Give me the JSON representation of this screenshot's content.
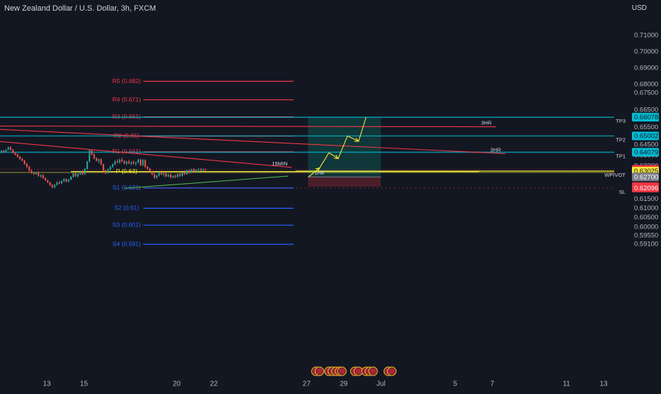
{
  "header": {
    "title": "New Zealand Dollar / U.S. Dollar, 3h, FXCM",
    "currency": "USD"
  },
  "colors": {
    "background": "#131722",
    "bull": "#26a69a",
    "bear": "#ef5350",
    "resistance": "#f23645",
    "support": "#2962ff",
    "pivot": "#f5e63b",
    "target": "#089981",
    "grid": "#2a2e39"
  },
  "chart_data": {
    "type": "candlestick",
    "symbol": "NZDUSD",
    "timeframe": "3h",
    "yscale": "log",
    "ylim": [
      0.5885,
      0.7165
    ],
    "x_ticks": [
      {
        "label": "13",
        "day": 13
      },
      {
        "label": "15",
        "day": 15
      },
      {
        "label": "20",
        "day": 20
      },
      {
        "label": "22",
        "day": 22
      },
      {
        "label": "27",
        "day": 27
      },
      {
        "label": "29",
        "day": 29
      },
      {
        "label": "Jul",
        "day": 31
      },
      {
        "label": "5",
        "day": 35
      },
      {
        "label": "7",
        "day": 37
      },
      {
        "label": "11",
        "day": 41
      },
      {
        "label": "13",
        "day": 43
      }
    ],
    "y_ticks": [
      0.71,
      0.7,
      0.69,
      0.68,
      0.675,
      0.665,
      0.655,
      0.645,
      0.639,
      0.633,
      0.615,
      0.61,
      0.605,
      0.6,
      0.5955,
      0.591
    ],
    "pivot_levels": [
      {
        "label": "R5 (0.682)",
        "value": 0.682,
        "kind": "resistance"
      },
      {
        "label": "R4 (0.671)",
        "value": 0.671,
        "kind": "resistance"
      },
      {
        "label": "R3 (0.661)",
        "value": 0.661,
        "kind": "resistance"
      },
      {
        "label": "R2 (0.65)",
        "value": 0.65,
        "kind": "resistance"
      },
      {
        "label": "R1 (0.641)",
        "value": 0.641,
        "kind": "resistance"
      },
      {
        "label": "P (0.63)",
        "value": 0.63,
        "kind": "pivot"
      },
      {
        "label": "S1 (0.621)",
        "value": 0.621,
        "kind": "support"
      },
      {
        "label": "S2 (0.61)",
        "value": 0.61,
        "kind": "support"
      },
      {
        "label": "S3 (0.601)",
        "value": 0.601,
        "kind": "support"
      },
      {
        "label": "S4 (0.591)",
        "value": 0.591,
        "kind": "support"
      }
    ],
    "price_labels": [
      {
        "value": 0.6609,
        "text": "0.66090",
        "bg": "#089981",
        "fg": "#ffffff"
      },
      {
        "value": 0.66078,
        "text": "0.66078",
        "bg": "#00bcd4",
        "fg": "#131722"
      },
      {
        "value": 0.65002,
        "text": "0.65002",
        "bg": "#00bcd4",
        "fg": "#131722"
      },
      {
        "value": 0.64079,
        "text": "0.64079",
        "bg": "#00bcd4",
        "fg": "#131722"
      },
      {
        "value": 0.63126,
        "text": "0.63126",
        "bg": "#f23645",
        "fg": "#ffffff"
      },
      {
        "value": 0.63025,
        "text": "0.63025",
        "bg": "#f5e63b",
        "fg": "#131722"
      },
      {
        "value": 0.627,
        "text": "0.62700",
        "bg": "#787b86",
        "fg": "#ffffff"
      },
      {
        "value": 0.6217,
        "text": "0.62170",
        "bg": "#f23645",
        "fg": "#ffffff"
      },
      {
        "value": 0.62096,
        "text": "0.62096",
        "bg": "#f23645",
        "fg": "#ffffff"
      }
    ],
    "target_lines": [
      {
        "label": "TP3",
        "value": 0.66078
      },
      {
        "label": "TP2",
        "value": 0.65002
      },
      {
        "label": "TP1",
        "value": 0.64079
      },
      {
        "label": "WPIVOT",
        "value": 0.63025
      },
      {
        "label": "SL",
        "value": 0.62096
      }
    ],
    "trade_box": {
      "entry": 0.627,
      "target": 0.6609,
      "stop": 0.6217,
      "x_start": 27,
      "x_end": 31
    },
    "trendlines": [
      {
        "label": "3HR",
        "x1": 10.0,
        "y1": 0.6557,
        "x2": 37.2,
        "y2": 0.6553,
        "color": "#f23645"
      },
      {
        "label": "3HR",
        "x1": 10.0,
        "y1": 0.654,
        "x2": 37.7,
        "y2": 0.64,
        "color": "#f23645"
      },
      {
        "label": "15MIN",
        "x1": 10.1,
        "y1": 0.6472,
        "x2": 26.2,
        "y2": 0.6323,
        "color": "#f23645"
      },
      {
        "label": "",
        "x1": 17.2,
        "y1": 0.6208,
        "x2": 26.0,
        "y2": 0.6275,
        "color": "#4caf50"
      }
    ],
    "annotations": [
      {
        "text": "1HR",
        "day": 27.5,
        "value": 0.629
      }
    ],
    "projection": {
      "color": "#f5e63b",
      "points": [
        [
          27.1,
          0.627
        ],
        [
          27.7,
          0.632
        ],
        [
          28.2,
          0.6405
        ],
        [
          28.7,
          0.6372
        ],
        [
          29.2,
          0.65
        ],
        [
          29.8,
          0.647
        ],
        [
          30.2,
          0.6607
        ]
      ]
    },
    "candles": {
      "start_day": 10.05,
      "step_day": 0.125,
      "ohlc": [
        [
          0.6457,
          0.6463,
          0.6438,
          0.6445
        ],
        [
          0.6445,
          0.6449,
          0.6428,
          0.6432
        ],
        [
          0.6432,
          0.6436,
          0.6416,
          0.642
        ],
        [
          0.642,
          0.6426,
          0.6406,
          0.641
        ],
        [
          0.641,
          0.642,
          0.6402,
          0.6415
        ],
        [
          0.6415,
          0.6422,
          0.6405,
          0.6408
        ],
        [
          0.6408,
          0.6425,
          0.6406,
          0.6422
        ],
        [
          0.6422,
          0.644,
          0.6418,
          0.6436
        ],
        [
          0.6436,
          0.6442,
          0.6418,
          0.6422
        ],
        [
          0.6422,
          0.6426,
          0.64,
          0.6404
        ],
        [
          0.6404,
          0.641,
          0.639,
          0.6395
        ],
        [
          0.6395,
          0.6402,
          0.6378,
          0.6382
        ],
        [
          0.6382,
          0.6388,
          0.6365,
          0.637
        ],
        [
          0.637,
          0.6378,
          0.6356,
          0.6361
        ],
        [
          0.6361,
          0.6366,
          0.6338,
          0.6342
        ],
        [
          0.6342,
          0.6348,
          0.632,
          0.6326
        ],
        [
          0.6326,
          0.6332,
          0.63,
          0.6305
        ],
        [
          0.6305,
          0.6312,
          0.6288,
          0.6292
        ],
        [
          0.6292,
          0.63,
          0.628,
          0.6286
        ],
        [
          0.6286,
          0.63,
          0.6282,
          0.6296
        ],
        [
          0.6296,
          0.6302,
          0.627,
          0.6276
        ],
        [
          0.6276,
          0.6285,
          0.6266,
          0.628
        ],
        [
          0.628,
          0.6286,
          0.626,
          0.6264
        ],
        [
          0.6264,
          0.6268,
          0.6248,
          0.6252
        ],
        [
          0.6252,
          0.6256,
          0.6236,
          0.624
        ],
        [
          0.624,
          0.6244,
          0.622,
          0.6226
        ],
        [
          0.6226,
          0.6232,
          0.6208,
          0.6214
        ],
        [
          0.6214,
          0.623,
          0.6208,
          0.6226
        ],
        [
          0.6226,
          0.6246,
          0.6222,
          0.624
        ],
        [
          0.624,
          0.6248,
          0.623,
          0.6235
        ],
        [
          0.6235,
          0.6252,
          0.6232,
          0.6248
        ],
        [
          0.6248,
          0.6264,
          0.6242,
          0.6258
        ],
        [
          0.6258,
          0.6262,
          0.624,
          0.6246
        ],
        [
          0.6246,
          0.626,
          0.624,
          0.6255
        ],
        [
          0.6255,
          0.6275,
          0.6252,
          0.627
        ],
        [
          0.627,
          0.6295,
          0.6266,
          0.629
        ],
        [
          0.629,
          0.6296,
          0.627,
          0.6275
        ],
        [
          0.6275,
          0.629,
          0.6266,
          0.6286
        ],
        [
          0.6286,
          0.6305,
          0.628,
          0.63
        ],
        [
          0.63,
          0.6308,
          0.628,
          0.6285
        ],
        [
          0.6285,
          0.632,
          0.6282,
          0.6315
        ],
        [
          0.6315,
          0.636,
          0.631,
          0.6355
        ],
        [
          0.6355,
          0.6425,
          0.635,
          0.6418
        ],
        [
          0.6418,
          0.6422,
          0.639,
          0.6396
        ],
        [
          0.6396,
          0.6402,
          0.6368,
          0.6374
        ],
        [
          0.6374,
          0.638,
          0.6355,
          0.636
        ],
        [
          0.636,
          0.6372,
          0.6345,
          0.6368
        ],
        [
          0.6368,
          0.6374,
          0.6335,
          0.634
        ],
        [
          0.634,
          0.6344,
          0.63,
          0.6306
        ],
        [
          0.6306,
          0.6312,
          0.6285,
          0.6292
        ],
        [
          0.6292,
          0.6318,
          0.6288,
          0.6312
        ],
        [
          0.6312,
          0.6332,
          0.6306,
          0.6326
        ],
        [
          0.6326,
          0.6345,
          0.632,
          0.634
        ],
        [
          0.634,
          0.6362,
          0.6334,
          0.6356
        ],
        [
          0.6356,
          0.6368,
          0.6346,
          0.635
        ],
        [
          0.635,
          0.6372,
          0.6344,
          0.6366
        ],
        [
          0.6366,
          0.6378,
          0.6352,
          0.6358
        ],
        [
          0.6358,
          0.6364,
          0.634,
          0.6345
        ],
        [
          0.6345,
          0.636,
          0.6336,
          0.6354
        ],
        [
          0.6354,
          0.6366,
          0.634,
          0.6346
        ],
        [
          0.6346,
          0.6358,
          0.6334,
          0.6352
        ],
        [
          0.6352,
          0.6362,
          0.6338,
          0.6344
        ],
        [
          0.6344,
          0.6356,
          0.6332,
          0.635
        ],
        [
          0.635,
          0.6372,
          0.6346,
          0.6366
        ],
        [
          0.6366,
          0.6372,
          0.633,
          0.6336
        ],
        [
          0.6336,
          0.637,
          0.633,
          0.6364
        ],
        [
          0.6364,
          0.6368,
          0.632,
          0.6326
        ],
        [
          0.6326,
          0.6332,
          0.631,
          0.6316
        ],
        [
          0.6316,
          0.6322,
          0.6298,
          0.6302
        ],
        [
          0.6302,
          0.6306,
          0.628,
          0.6285
        ],
        [
          0.6285,
          0.629,
          0.626,
          0.6266
        ],
        [
          0.6266,
          0.6282,
          0.626,
          0.6278
        ],
        [
          0.6278,
          0.63,
          0.6272,
          0.6296
        ],
        [
          0.6296,
          0.6306,
          0.628,
          0.6284
        ],
        [
          0.6284,
          0.6294,
          0.6272,
          0.629
        ],
        [
          0.629,
          0.6296,
          0.6268,
          0.6274
        ],
        [
          0.6274,
          0.6288,
          0.6268,
          0.6282
        ],
        [
          0.6282,
          0.629,
          0.6262,
          0.6268
        ],
        [
          0.6268,
          0.628,
          0.6262,
          0.6276
        ],
        [
          0.6276,
          0.6284,
          0.6264,
          0.627
        ],
        [
          0.627,
          0.629,
          0.6266,
          0.6286
        ],
        [
          0.6286,
          0.6292,
          0.627,
          0.6276
        ],
        [
          0.6276,
          0.6298,
          0.6272,
          0.6294
        ],
        [
          0.6294,
          0.6306,
          0.628,
          0.6286
        ],
        [
          0.6286,
          0.631,
          0.6282,
          0.6306
        ],
        [
          0.6306,
          0.6312,
          0.6288,
          0.6294
        ],
        [
          0.6294,
          0.6316,
          0.629,
          0.6312
        ],
        [
          0.6312,
          0.632,
          0.6295,
          0.63
        ],
        [
          0.63,
          0.6314,
          0.6296,
          0.631
        ],
        [
          0.631,
          0.6318,
          0.6298,
          0.6312
        ],
        [
          0.6312,
          0.632,
          0.6302,
          0.6308
        ],
        [
          0.6308,
          0.6318,
          0.6302,
          0.6312
        ],
        [
          0.6312,
          0.6316,
          0.6304,
          0.631
        ]
      ]
    }
  }
}
